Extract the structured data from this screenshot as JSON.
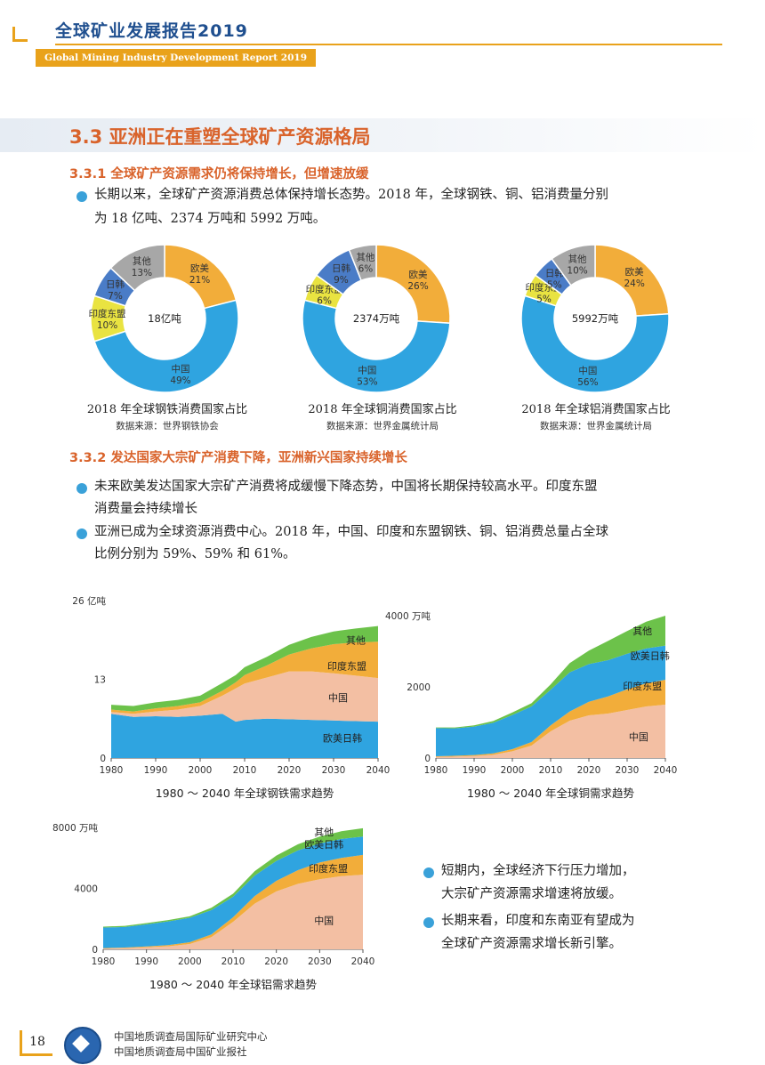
{
  "header": {
    "title": "全球矿业发展报告2019",
    "subtitle": "Global Mining Industry Development Report 2019"
  },
  "section": {
    "title": "3.3 亚洲正在重塑全球矿产资源格局"
  },
  "sub1": {
    "title": "3.3.1 全球矿产资源需求仍将保持增长，但增速放缓",
    "para_line1": "长期以来，全球矿产资源消费总体保持增长态势。2018 年，全球钢铁、铜、铝消费量分别",
    "para_line2": "为 18 亿吨、2374 万吨和 5992 万吨。"
  },
  "colors": {
    "china": "#2fa4e0",
    "india_asean": "#e9e341",
    "jp_kr": "#4a7cc7",
    "others": "#a7a7a7",
    "eu_us": "#f2ad3a",
    "area_china": "#f3bfa3",
    "area_eu": "#2fa4e0",
    "area_india": "#f2ad3a",
    "area_other": "#6cc24a"
  },
  "donuts": [
    {
      "center_label": "18亿吨",
      "caption": "2018 年全球钢铁消费国家占比",
      "source": "数据来源：世界钢铁协会",
      "segments": [
        {
          "key": "eu_us",
          "name": "欧美",
          "pct": "21%",
          "value": 21
        },
        {
          "key": "china",
          "name": "中国",
          "pct": "49%",
          "value": 49
        },
        {
          "key": "india_asean",
          "name": "印度东盟",
          "pct": "10%",
          "value": 10
        },
        {
          "key": "jp_kr",
          "name": "日韩",
          "pct": "7%",
          "value": 7
        },
        {
          "key": "others",
          "name": "其他",
          "pct": "13%",
          "value": 13
        }
      ]
    },
    {
      "center_label": "2374万吨",
      "caption": "2018 年全球铜消费国家占比",
      "source": "数据来源：世界金属统计局",
      "segments": [
        {
          "key": "eu_us",
          "name": "欧美",
          "pct": "26%",
          "value": 26
        },
        {
          "key": "china",
          "name": "中国",
          "pct": "53%",
          "value": 53
        },
        {
          "key": "india_asean",
          "name": "印度东盟",
          "pct": "6%",
          "value": 6
        },
        {
          "key": "jp_kr",
          "name": "日韩",
          "pct": "9%",
          "value": 9
        },
        {
          "key": "others",
          "name": "其他",
          "pct": "6%",
          "value": 6
        }
      ]
    },
    {
      "center_label": "5992万吨",
      "caption": "2018 年全球铝消费国家占比",
      "source": "数据来源：世界金属统计局",
      "segments": [
        {
          "key": "eu_us",
          "name": "欧美",
          "pct": "24%",
          "value": 24
        },
        {
          "key": "china",
          "name": "中国",
          "pct": "56%",
          "value": 56
        },
        {
          "key": "india_asean",
          "name": "印度东盟",
          "pct": "5%",
          "value": 5
        },
        {
          "key": "jp_kr",
          "name": "日韩",
          "pct": "5%",
          "value": 5
        },
        {
          "key": "others",
          "name": "其他",
          "pct": "10%",
          "value": 10
        }
      ]
    }
  ],
  "sub2": {
    "title": "3.3.2 发达国家大宗矿产消费下降，亚洲新兴国家持续增长",
    "b1_line1": "未来欧美发达国家大宗矿产消费将成缓慢下降态势，中国将长期保持较高水平。印度东盟",
    "b1_line2": "消费量会持续增长",
    "b2_line1": "亚洲已成为全球资源消费中心。2018 年，中国、印度和东盟钢铁、铜、铝消费总量占全球",
    "b2_line2": "比例分别为 59%、59% 和 61%。"
  },
  "chart_data": [
    {
      "type": "area",
      "title": "1980 ～ 2040 年全球钢铁需求趋势",
      "ylabel": "亿吨",
      "ylim": [
        0,
        26
      ],
      "yticks": [
        0,
        13,
        26
      ],
      "xticks": [
        1980,
        1990,
        2000,
        2010,
        2020,
        2030,
        2040
      ],
      "x": [
        1980,
        1985,
        1990,
        1995,
        2000,
        2005,
        2008,
        2010,
        2015,
        2020,
        2025,
        2030,
        2035,
        2040
      ],
      "series": [
        {
          "name": "欧美日韩",
          "key": "area_eu",
          "values": [
            7.3,
            6.8,
            6.9,
            6.8,
            7.0,
            7.3,
            6.0,
            6.3,
            6.5,
            6.4,
            6.3,
            6.2,
            6.1,
            6.0
          ]
        },
        {
          "name": "中国",
          "key": "area_china",
          "values": [
            0.3,
            0.5,
            0.8,
            1.2,
            1.6,
            3.0,
            5.5,
            6.0,
            6.8,
            7.9,
            8.0,
            7.8,
            7.5,
            7.2
          ]
        },
        {
          "name": "印度东盟",
          "key": "area_india",
          "values": [
            0.4,
            0.4,
            0.5,
            0.6,
            0.6,
            0.8,
            1.0,
            1.4,
            2.0,
            2.8,
            3.8,
            4.8,
            5.5,
            6.0
          ]
        },
        {
          "name": "其他",
          "key": "area_other",
          "values": [
            0.8,
            0.9,
            1.0,
            1.0,
            1.1,
            1.3,
            1.2,
            1.3,
            1.4,
            1.6,
            1.9,
            2.1,
            2.3,
            2.6
          ]
        }
      ],
      "labels": [
        {
          "text": "其他",
          "x": 2035,
          "y": 19.5
        },
        {
          "text": "印度东盟",
          "x": 2033,
          "y": 15.2
        },
        {
          "text": "中国",
          "x": 2031,
          "y": 10.0
        },
        {
          "text": "欧美日韩",
          "x": 2032,
          "y": 3.3
        }
      ]
    },
    {
      "type": "area",
      "title": "1980 ～ 2040 年全球铜需求趋势",
      "ylabel": "万吨",
      "ylim": [
        0,
        4000
      ],
      "yticks": [
        0,
        2000,
        4000
      ],
      "xticks": [
        1980,
        1990,
        2000,
        2010,
        2020,
        2030,
        2040
      ],
      "x": [
        1980,
        1985,
        1990,
        1995,
        2000,
        2005,
        2010,
        2015,
        2020,
        2025,
        2030,
        2035,
        2040
      ],
      "series": [
        {
          "name": "中国",
          "key": "area_china",
          "values": [
            30,
            40,
            55,
            90,
            190,
            350,
            750,
            1050,
            1200,
            1250,
            1350,
            1450,
            1500
          ]
        },
        {
          "name": "印度东盟",
          "key": "area_india",
          "values": [
            20,
            25,
            30,
            40,
            60,
            100,
            170,
            260,
            380,
            480,
            580,
            650,
            700
          ]
        },
        {
          "name": "欧美日韩",
          "key": "area_eu",
          "values": [
            790,
            770,
            800,
            860,
            960,
            1000,
            1000,
            1100,
            1060,
            1020,
            1000,
            980,
            960
          ]
        },
        {
          "name": "其他",
          "key": "area_other",
          "values": [
            20,
            25,
            35,
            50,
            70,
            90,
            150,
            260,
            380,
            540,
            640,
            750,
            840
          ]
        }
      ],
      "labels": [
        {
          "text": "其他",
          "x": 2034,
          "y": 3580
        },
        {
          "text": "欧美日韩",
          "x": 2036,
          "y": 2880
        },
        {
          "text": "印度东盟",
          "x": 2034,
          "y": 2030
        },
        {
          "text": "中国",
          "x": 2033,
          "y": 600
        }
      ]
    },
    {
      "type": "area",
      "title": "1980 ～ 2040 年全球铝需求趋势",
      "ylabel": "万吨",
      "ylim": [
        0,
        8000
      ],
      "yticks": [
        0,
        4000,
        8000
      ],
      "xticks": [
        1980,
        1990,
        2000,
        2010,
        2020,
        2030,
        2040
      ],
      "x": [
        1980,
        1985,
        1990,
        1995,
        2000,
        2005,
        2010,
        2015,
        2020,
        2025,
        2030,
        2035,
        2040
      ],
      "series": [
        {
          "name": "中国",
          "key": "area_china",
          "values": [
            50,
            80,
            130,
            200,
            350,
            800,
            1800,
            3000,
            3800,
            4300,
            4600,
            4800,
            4900
          ]
        },
        {
          "name": "印度东盟",
          "key": "area_india",
          "values": [
            30,
            40,
            60,
            80,
            120,
            180,
            300,
            500,
            700,
            900,
            1100,
            1200,
            1300
          ]
        },
        {
          "name": "欧美日韩",
          "key": "area_eu",
          "values": [
            1350,
            1350,
            1450,
            1550,
            1600,
            1600,
            1350,
            1350,
            1300,
            1300,
            1250,
            1250,
            1200
          ]
        },
        {
          "name": "其他",
          "key": "area_other",
          "values": [
            60,
            70,
            80,
            90,
            100,
            150,
            200,
            280,
            350,
            400,
            450,
            500,
            550
          ]
        }
      ],
      "labels": [
        {
          "text": "其他",
          "x": 2031,
          "y": 7700
        },
        {
          "text": "欧美日韩",
          "x": 2031,
          "y": 6900
        },
        {
          "text": "印度东盟",
          "x": 2032,
          "y": 5300
        },
        {
          "text": "中国",
          "x": 2031,
          "y": 1900
        }
      ]
    }
  ],
  "side_bullets": {
    "b1_line1": "短期内，全球经济下行压力增加，",
    "b1_line2": "大宗矿产资源需求增速将放缓。",
    "b2_line1": "长期来看，印度和东南亚有望成为",
    "b2_line2": "全球矿产资源需求增长新引擎。"
  },
  "footer": {
    "page": "18",
    "line1": "中国地质调查局国际矿业研究中心",
    "line2": "中国地质调查局中国矿业报社"
  }
}
